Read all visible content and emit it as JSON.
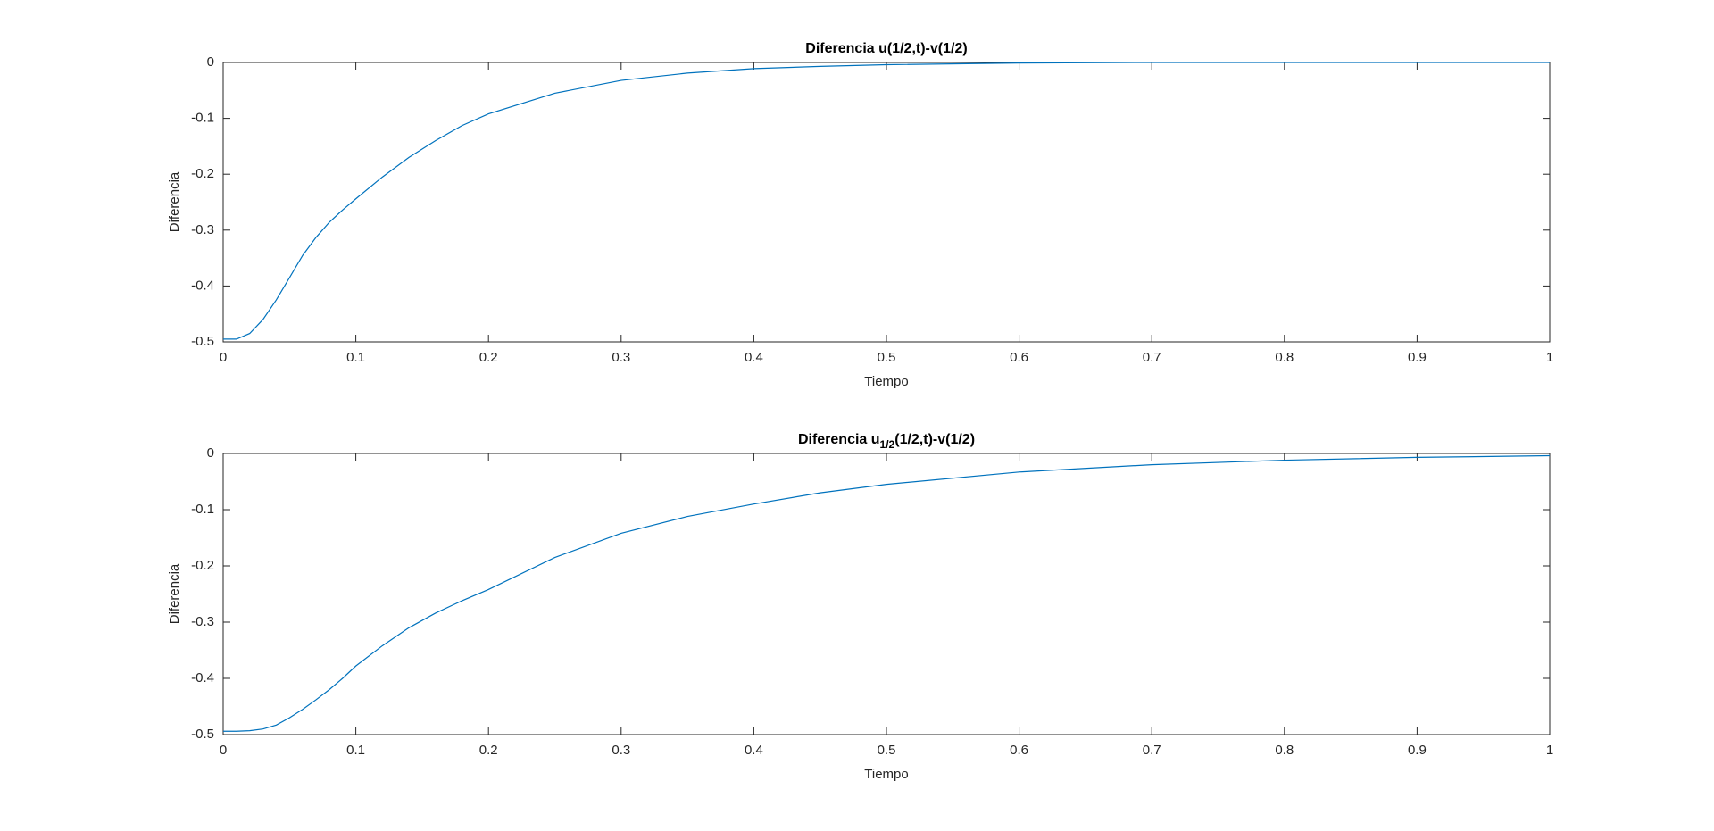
{
  "chart_data": [
    {
      "type": "line",
      "title": [
        "Diferencia u(1/2,t)-v(1/2)"
      ],
      "x_label": "Tiempo",
      "y_label": "Diferencia",
      "x": [
        0,
        0.01,
        0.02,
        0.03,
        0.04,
        0.05,
        0.06,
        0.07,
        0.08,
        0.09,
        0.1,
        0.12,
        0.14,
        0.16,
        0.18,
        0.2,
        0.25,
        0.3,
        0.35,
        0.4,
        0.45,
        0.5,
        0.6,
        0.7,
        0.8,
        0.9,
        1
      ],
      "series": [
        {
          "color": "#0072bd",
          "values": [
            -0.495,
            -0.495,
            -0.485,
            -0.46,
            -0.425,
            -0.385,
            -0.345,
            -0.313,
            -0.286,
            -0.264,
            -0.244,
            -0.205,
            -0.17,
            -0.14,
            -0.113,
            -0.092,
            -0.055,
            -0.032,
            -0.019,
            -0.011,
            -0.007,
            -0.004,
            -0.001,
            0,
            0,
            0,
            0
          ]
        }
      ],
      "xlim": [
        0,
        1
      ],
      "xticks": [
        0,
        0.1,
        0.2,
        0.3,
        0.4,
        0.5,
        0.6,
        0.7,
        0.8,
        0.9,
        1
      ],
      "ylim": [
        -0.5,
        0
      ],
      "yticks": [
        -0.5,
        -0.4,
        -0.3,
        -0.2,
        -0.1,
        0
      ]
    },
    {
      "type": "line",
      "title": [
        "Diferencia u",
        "1/2",
        "(1/2,t)-v(1/2)"
      ],
      "x_label": "Tiempo",
      "y_label": "Diferencia",
      "x": [
        0,
        0.01,
        0.02,
        0.03,
        0.04,
        0.05,
        0.06,
        0.07,
        0.08,
        0.09,
        0.1,
        0.12,
        0.14,
        0.16,
        0.18,
        0.2,
        0.25,
        0.3,
        0.35,
        0.4,
        0.45,
        0.5,
        0.6,
        0.7,
        0.8,
        0.9,
        1
      ],
      "series": [
        {
          "color": "#0072bd",
          "values": [
            -0.494,
            -0.494,
            -0.493,
            -0.49,
            -0.483,
            -0.47,
            -0.455,
            -0.438,
            -0.42,
            -0.4,
            -0.378,
            -0.342,
            -0.31,
            -0.284,
            -0.262,
            -0.242,
            -0.185,
            -0.142,
            -0.112,
            -0.09,
            -0.07,
            -0.055,
            -0.033,
            -0.02,
            -0.012,
            -0.007,
            -0.004
          ]
        }
      ],
      "xlim": [
        0,
        1
      ],
      "xticks": [
        0,
        0.1,
        0.2,
        0.3,
        0.4,
        0.5,
        0.6,
        0.7,
        0.8,
        0.9,
        1
      ],
      "ylim": [
        -0.5,
        0
      ],
      "yticks": [
        -0.5,
        -0.4,
        -0.3,
        -0.2,
        -0.1,
        0
      ]
    }
  ]
}
